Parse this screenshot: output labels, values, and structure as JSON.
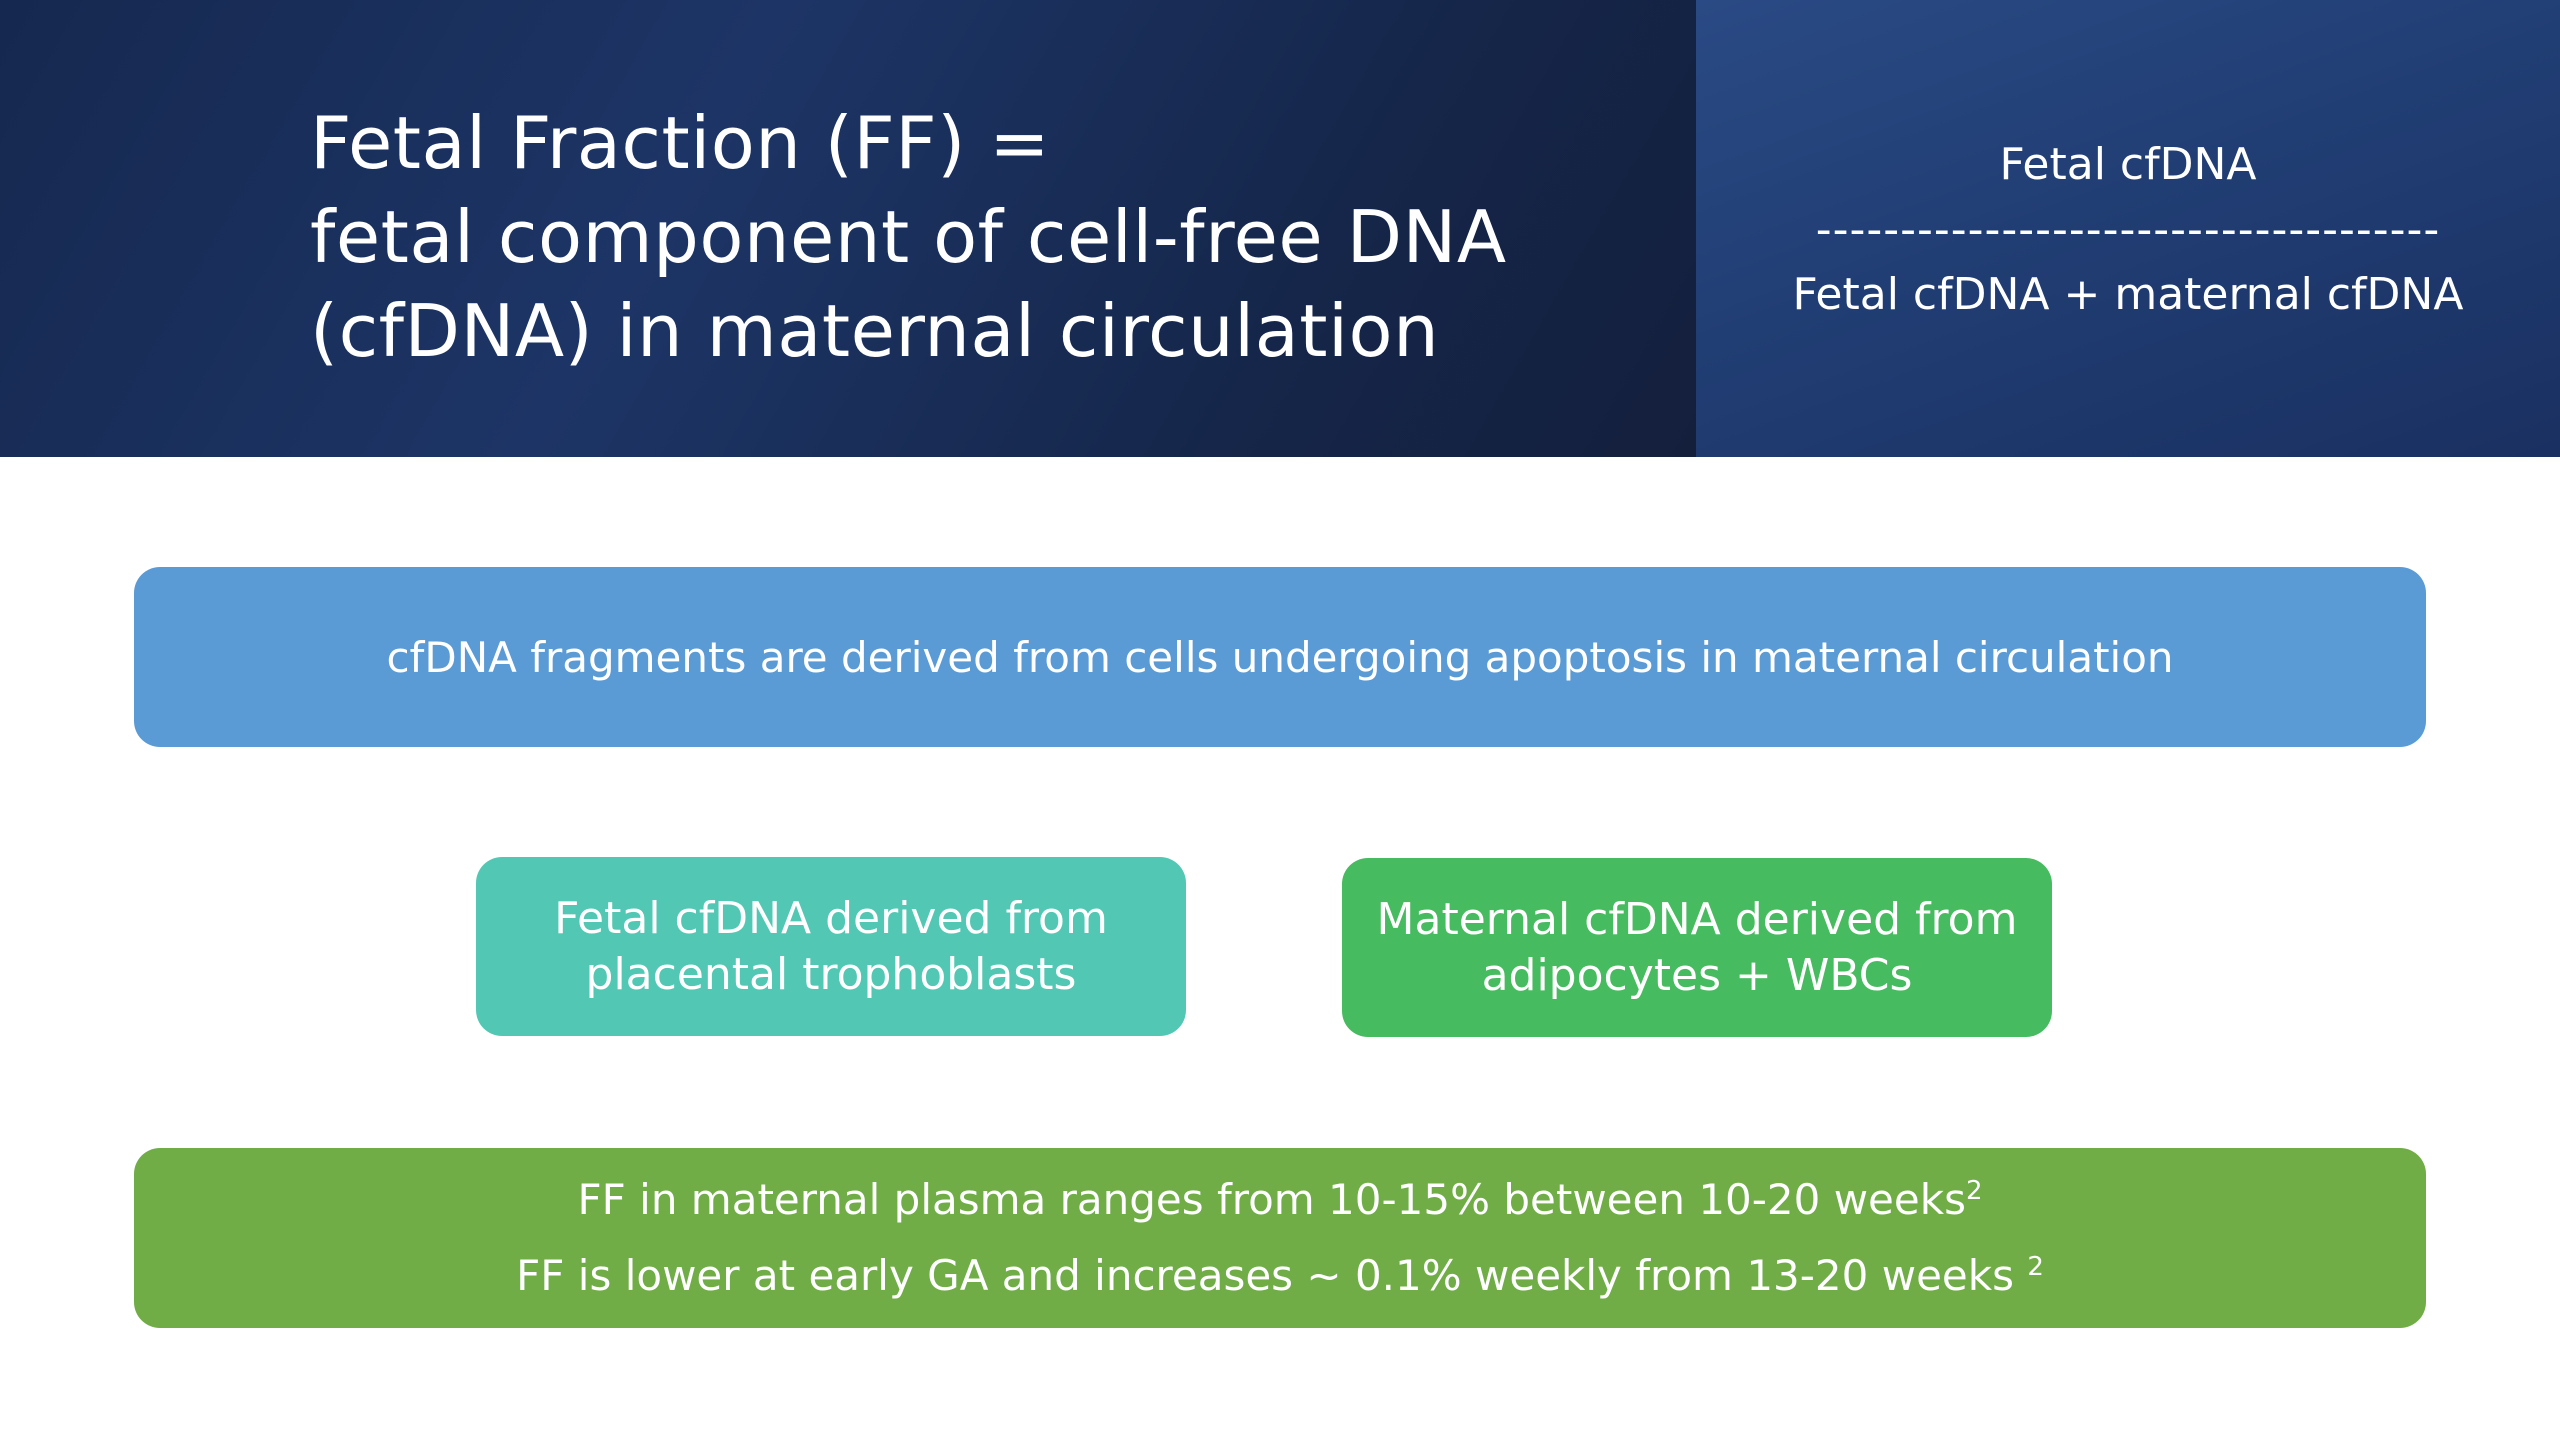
{
  "title": {
    "line1": "Fetal Fraction (FF) =",
    "line2": "fetal component of cell-free DNA",
    "line3": "(cfDNA) in maternal circulation"
  },
  "formula": {
    "numerator": "Fetal cfDNA",
    "divider": "-------------------------------------",
    "denominator": "Fetal cfDNA + maternal cfDNA"
  },
  "boxes": {
    "apoptosis": "cfDNA fragments are derived from cells undergoing apoptosis in maternal circulation",
    "fetal": {
      "line1": "Fetal cfDNA derived from",
      "line2": "placental trophoblasts"
    },
    "maternal": {
      "line1": "Maternal cfDNA derived from",
      "line2": "adipocytes + WBCs"
    },
    "ff_range": {
      "line1": "FF in maternal plasma ranges from 10-15% between 10-20 weeks",
      "line1_sup": "2",
      "line2": "FF is lower at early GA and increases ~ 0.1% weekly from 13-20 weeks ",
      "line2_sup": "2"
    }
  },
  "colors": {
    "header_dark": "#15284f",
    "header_side": "#213e74",
    "box_blue": "#5b9bd5",
    "box_teal": "#52c8b4",
    "box_green": "#47bb5f",
    "box_olive": "#70ad47"
  }
}
